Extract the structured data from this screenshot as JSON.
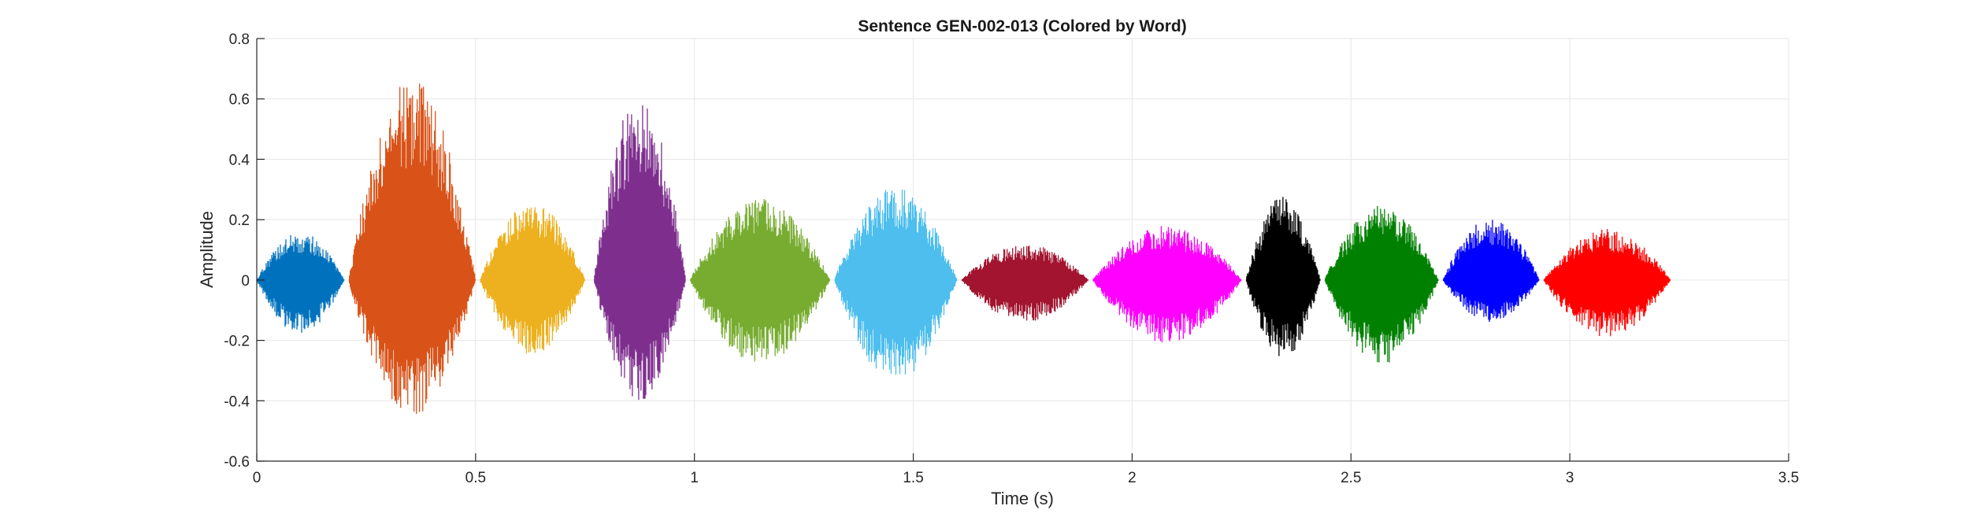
{
  "chart_data": {
    "type": "line",
    "title": "Sentence GEN-002-013 (Colored by Word)",
    "xlabel": "Time (s)",
    "ylabel": "Amplitude",
    "xlim": [
      0,
      3.5
    ],
    "ylim": [
      -0.6,
      0.8
    ],
    "xticks": [
      0,
      0.5,
      1,
      1.5,
      2,
      2.5,
      3,
      3.5
    ],
    "xtick_labels": [
      "0",
      "0.5",
      "1",
      "1.5",
      "2",
      "2.5",
      "3",
      "3.5"
    ],
    "yticks": [
      -0.6,
      -0.4,
      -0.2,
      0,
      0.2,
      0.4,
      0.6,
      0.8
    ],
    "ytick_labels": [
      "-0.6",
      "-0.4",
      "-0.2",
      "0",
      "0.2",
      "0.4",
      "0.6",
      "0.8"
    ],
    "grid": true,
    "legend": "none",
    "series": [
      {
        "start": 0.0,
        "end": 0.2,
        "max": 0.16,
        "min": -0.18,
        "color": "#0072BD"
      },
      {
        "start": 0.21,
        "end": 0.5,
        "max": 0.67,
        "min": -0.45,
        "color": "#D95319"
      },
      {
        "start": 0.51,
        "end": 0.75,
        "max": 0.26,
        "min": -0.25,
        "color": "#EDB120"
      },
      {
        "start": 0.77,
        "end": 0.98,
        "max": 0.62,
        "min": -0.4,
        "color": "#7E2F8E"
      },
      {
        "start": 0.99,
        "end": 1.31,
        "max": 0.27,
        "min": -0.28,
        "color": "#77AC30"
      },
      {
        "start": 1.32,
        "end": 1.6,
        "max": 0.31,
        "min": -0.34,
        "color": "#4DBEEE"
      },
      {
        "start": 1.61,
        "end": 1.9,
        "max": 0.12,
        "min": -0.14,
        "color": "#A2142F"
      },
      {
        "start": 1.91,
        "end": 2.25,
        "max": 0.18,
        "min": -0.21,
        "color": "#FF00FF"
      },
      {
        "start": 2.26,
        "end": 2.43,
        "max": 0.28,
        "min": -0.26,
        "color": "#000000"
      },
      {
        "start": 2.44,
        "end": 2.7,
        "max": 0.25,
        "min": -0.28,
        "color": "#008000"
      },
      {
        "start": 2.71,
        "end": 2.93,
        "max": 0.21,
        "min": -0.14,
        "color": "#0000FF"
      },
      {
        "start": 2.94,
        "end": 3.23,
        "max": 0.17,
        "min": -0.19,
        "color": "#FF0000"
      }
    ]
  }
}
